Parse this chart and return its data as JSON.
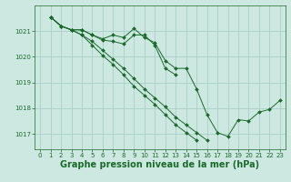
{
  "background_color": "#cce8e0",
  "grid_color": "#a8cfc8",
  "line_color": "#1a6b2a",
  "marker_color": "#1a6b2a",
  "xlabel": "Graphe pression niveau de la mer (hPa)",
  "xlabel_fontsize": 7,
  "yticks": [
    1017,
    1018,
    1019,
    1020,
    1021
  ],
  "xticks": [
    0,
    1,
    2,
    3,
    4,
    5,
    6,
    7,
    8,
    9,
    10,
    11,
    12,
    13,
    14,
    15,
    16,
    17,
    18,
    19,
    20,
    21,
    22,
    23
  ],
  "ylim": [
    1016.4,
    1022.0
  ],
  "xlim": [
    -0.5,
    23.5
  ],
  "series": [
    [
      null,
      1021.55,
      1021.2,
      1021.05,
      1021.05,
      1020.85,
      1020.7,
      1020.85,
      1020.75,
      1021.1,
      1020.75,
      1020.55,
      1019.85,
      1019.55,
      1019.55,
      1018.75,
      1017.75,
      1017.05,
      1016.9,
      1017.55,
      1017.5,
      1017.85,
      1017.95,
      1018.3
    ],
    [
      null,
      1021.55,
      1021.2,
      1021.05,
      1021.05,
      1020.85,
      1020.65,
      1020.6,
      1020.5,
      1020.85,
      1020.85,
      1020.45,
      1019.55,
      1019.3,
      null,
      null,
      null,
      null,
      null,
      null,
      null,
      null,
      null,
      null
    ],
    [
      null,
      1021.55,
      1021.2,
      1021.05,
      1020.85,
      1020.45,
      1020.05,
      1019.7,
      1019.3,
      1018.85,
      1018.5,
      1018.15,
      1017.75,
      1017.35,
      1017.05,
      1016.75,
      null,
      null,
      null,
      null,
      null,
      null,
      null,
      null
    ],
    [
      null,
      1021.55,
      1021.2,
      1021.05,
      1020.85,
      1020.6,
      1020.25,
      1019.9,
      1019.55,
      1019.15,
      1018.75,
      1018.4,
      1018.05,
      1017.65,
      1017.35,
      1017.05,
      1016.75,
      null,
      null,
      null,
      null,
      null,
      null,
      null
    ]
  ]
}
